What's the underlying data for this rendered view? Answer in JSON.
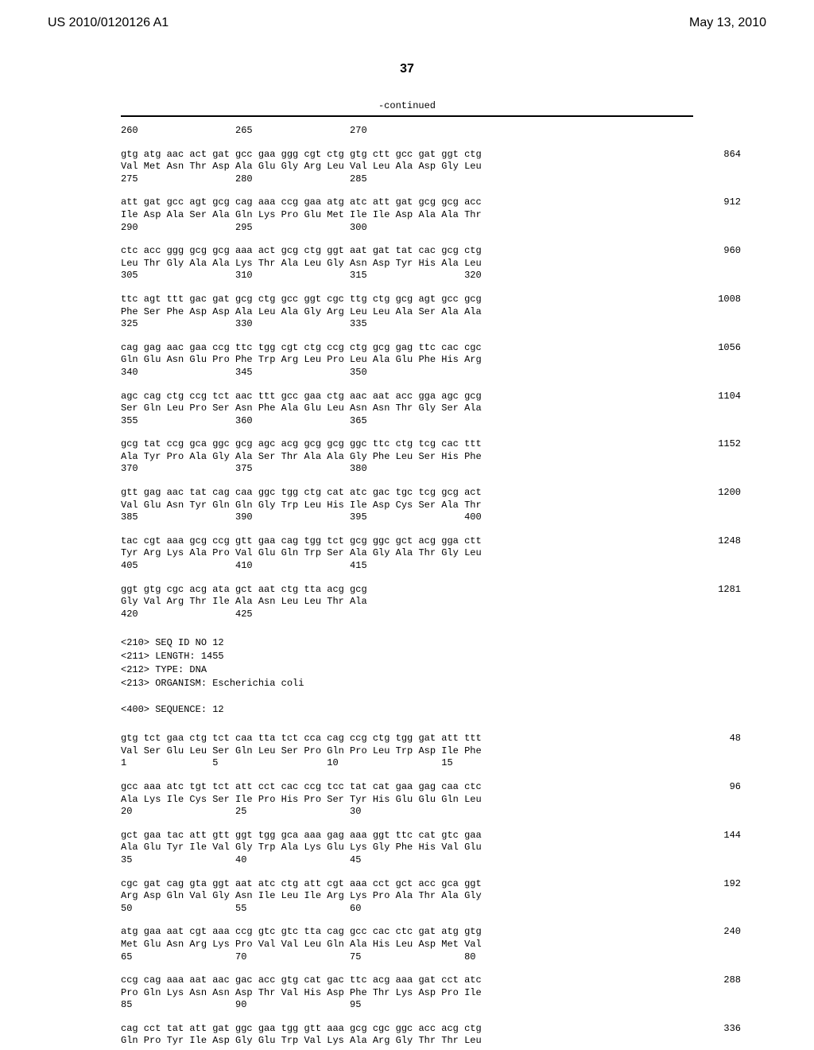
{
  "header": {
    "pub_number": "US 2010/0120126 A1",
    "pub_date": "May 13, 2010"
  },
  "page_number": "37",
  "continued_label": "-continued",
  "seq_blocks": [
    {
      "lines": [
        "260                 265                 270"
      ],
      "number": null
    },
    {
      "lines": [
        "gtg atg aac act gat gcc gaa ggg cgt ctg gtg ctt gcc gat ggt ctg",
        "Val Met Asn Thr Asp Ala Glu Gly Arg Leu Val Leu Ala Asp Gly Leu",
        "275                 280                 285"
      ],
      "number": "864"
    },
    {
      "lines": [
        "att gat gcc agt gcg cag aaa ccg gaa atg atc att gat gcg gcg acc",
        "Ile Asp Ala Ser Ala Gln Lys Pro Glu Met Ile Ile Asp Ala Ala Thr",
        "290                 295                 300"
      ],
      "number": "912"
    },
    {
      "lines": [
        "ctc acc ggg gcg gcg aaa act gcg ctg ggt aat gat tat cac gcg ctg",
        "Leu Thr Gly Ala Ala Lys Thr Ala Leu Gly Asn Asp Tyr His Ala Leu",
        "305                 310                 315                 320"
      ],
      "number": "960"
    },
    {
      "lines": [
        "ttc agt ttt gac gat gcg ctg gcc ggt cgc ttg ctg gcg agt gcc gcg",
        "Phe Ser Phe Asp Asp Ala Leu Ala Gly Arg Leu Leu Ala Ser Ala Ala",
        "325                 330                 335"
      ],
      "number": "1008"
    },
    {
      "lines": [
        "cag gag aac gaa ccg ttc tgg cgt ctg ccg ctg gcg gag ttc cac cgc",
        "Gln Glu Asn Glu Pro Phe Trp Arg Leu Pro Leu Ala Glu Phe His Arg",
        "340                 345                 350"
      ],
      "number": "1056"
    },
    {
      "lines": [
        "agc cag ctg ccg tct aac ttt gcc gaa ctg aac aat acc gga agc gcg",
        "Ser Gln Leu Pro Ser Asn Phe Ala Glu Leu Asn Asn Thr Gly Ser Ala",
        "355                 360                 365"
      ],
      "number": "1104"
    },
    {
      "lines": [
        "gcg tat ccg gca ggc gcg agc acg gcg gcg ggc ttc ctg tcg cac ttt",
        "Ala Tyr Pro Ala Gly Ala Ser Thr Ala Ala Gly Phe Leu Ser His Phe",
        "370                 375                 380"
      ],
      "number": "1152"
    },
    {
      "lines": [
        "gtt gag aac tat cag caa ggc tgg ctg cat atc gac tgc tcg gcg act",
        "Val Glu Asn Tyr Gln Gln Gly Trp Leu His Ile Asp Cys Ser Ala Thr",
        "385                 390                 395                 400"
      ],
      "number": "1200"
    },
    {
      "lines": [
        "tac cgt aaa gcg ccg gtt gaa cag tgg tct gcg ggc gct acg gga ctt",
        "Tyr Arg Lys Ala Pro Val Glu Gln Trp Ser Ala Gly Ala Thr Gly Leu",
        "405                 410                 415"
      ],
      "number": "1248"
    },
    {
      "lines": [
        "ggt gtg cgc acg ata gct aat ctg tta acg gcg",
        "Gly Val Arg Thr Ile Ala Asn Leu Leu Thr Ala",
        "420                 425"
      ],
      "number": "1281"
    }
  ],
  "metadata": [
    "<210> SEQ ID NO 12",
    "<211> LENGTH: 1455",
    "<212> TYPE: DNA",
    "<213> ORGANISM: Escherichia coli",
    "",
    "<400> SEQUENCE: 12"
  ],
  "seq_blocks2": [
    {
      "lines": [
        "gtg tct gaa ctg tct caa tta tct cca cag ccg ctg tgg gat att ttt",
        "Val Ser Glu Leu Ser Gln Leu Ser Pro Gln Pro Leu Trp Asp Ile Phe",
        "1               5                   10                  15"
      ],
      "number": "48"
    },
    {
      "lines": [
        "gcc aaa atc tgt tct att cct cac ccg tcc tat cat gaa gag caa ctc",
        "Ala Lys Ile Cys Ser Ile Pro His Pro Ser Tyr His Glu Glu Gln Leu",
        "20                  25                  30"
      ],
      "number": "96"
    },
    {
      "lines": [
        "gct gaa tac att gtt ggt tgg gca aaa gag aaa ggt ttc cat gtc gaa",
        "Ala Glu Tyr Ile Val Gly Trp Ala Lys Glu Lys Gly Phe His Val Glu",
        "35                  40                  45"
      ],
      "number": "144"
    },
    {
      "lines": [
        "cgc gat cag gta ggt aat atc ctg att cgt aaa cct gct acc gca ggt",
        "Arg Asp Gln Val Gly Asn Ile Leu Ile Arg Lys Pro Ala Thr Ala Gly",
        "50                  55                  60"
      ],
      "number": "192"
    },
    {
      "lines": [
        "atg gaa aat cgt aaa ccg gtc gtc tta cag gcc cac ctc gat atg gtg",
        "Met Glu Asn Arg Lys Pro Val Val Leu Gln Ala His Leu Asp Met Val",
        "65                  70                  75                  80"
      ],
      "number": "240"
    },
    {
      "lines": [
        "ccg cag aaa aat aac gac acc gtg cat gac ttc acg aaa gat cct atc",
        "Pro Gln Lys Asn Asn Asp Thr Val His Asp Phe Thr Lys Asp Pro Ile",
        "85                  90                  95"
      ],
      "number": "288"
    },
    {
      "lines": [
        "cag cct tat att gat ggc gaa tgg gtt aaa gcg cgc ggc acc acg ctg",
        "Gln Pro Tyr Ile Asp Gly Glu Trp Val Lys Ala Arg Gly Thr Thr Leu"
      ],
      "number": "336"
    }
  ]
}
